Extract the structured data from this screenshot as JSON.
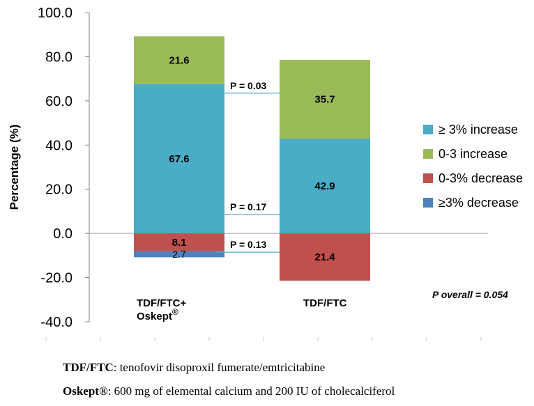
{
  "chart_data": {
    "type": "bar",
    "stacked": true,
    "categories": [
      "TDF/FTC+ Oskept®",
      "TDF/FTC"
    ],
    "category_lines": [
      [
        "TDF/FTC+",
        "Oskept"
      ],
      [
        "TDF/FTC"
      ]
    ],
    "category_superscripts": [
      "®",
      ""
    ],
    "series": [
      {
        "name": "≥ 3% increase",
        "values": [
          67.6,
          42.9
        ],
        "color": "#4bacc6",
        "labels": [
          "67.6",
          "42.9"
        ]
      },
      {
        "name": "0-3 increase",
        "values": [
          21.6,
          35.7
        ],
        "color": "#9bbb59",
        "labels": [
          "21.6",
          "35.7"
        ]
      },
      {
        "name": "0-3% decrease",
        "values": [
          -8.1,
          -21.4
        ],
        "color": "#c0504d",
        "labels": [
          "8.1",
          "21.4"
        ]
      },
      {
        "name": "≥3% decrease",
        "values": [
          -2.7,
          0
        ],
        "color": "#4f81bd",
        "labels": [
          "2.7",
          ""
        ]
      }
    ],
    "ylabel": "Percentage (%)",
    "ylim": [
      -40,
      100
    ],
    "yticks": [
      "100.0",
      "80.0",
      "60.0",
      "40.0",
      "20.0",
      "0.0",
      "-20.0",
      "-40.0"
    ],
    "legend_position": "right",
    "annotations": [
      {
        "text": "P = 0.03",
        "y": 63.5
      },
      {
        "text": "P = 0.17",
        "y": 8.5
      },
      {
        "text": "P = 0.13",
        "y": -8.5
      }
    ],
    "overall_note": "P overall = 0.054"
  },
  "footnotes": [
    {
      "term": "TDF/FTC",
      "text": ": tenofovir disoproxil fumerate/emtricitabine"
    },
    {
      "term": "Oskept®",
      "text": ": 600 mg of elemental calcium and 200 IU of cholecalciferol"
    }
  ]
}
